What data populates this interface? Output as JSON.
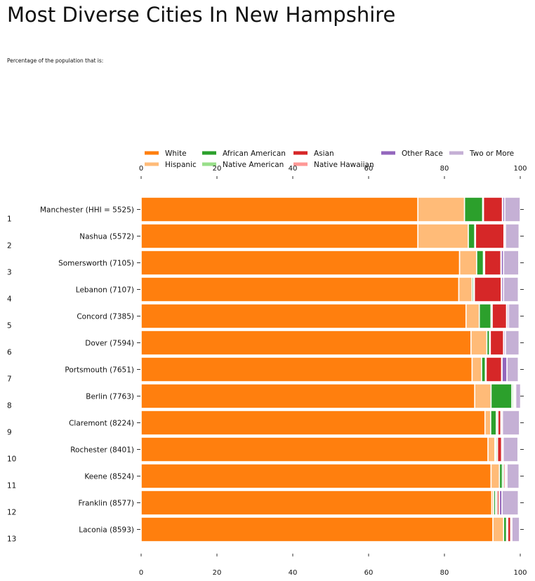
{
  "title": "Most Diverse Cities In New Hampshire",
  "subtitle": "Percentage of the population that is:",
  "colors": {
    "White": "#ff7f0e",
    "Hispanic": "#ffbb78",
    "African American": "#2ca02c",
    "Native American": "#98df8a",
    "Asian": "#d62728",
    "Native Hawaiian": "#ff9896",
    "Other Race": "#9467bd",
    "Two or More": "#c5b0d5"
  },
  "chart_data": {
    "type": "bar",
    "orientation": "horizontal-stacked",
    "title": "Most Diverse Cities In New Hampshire",
    "subtitle": "Percentage of the population that is:",
    "xlim": [
      0,
      100
    ],
    "xticks": [
      0,
      20,
      40,
      60,
      80,
      100
    ],
    "legend_placement": "top",
    "grid": false,
    "rank_labels": [
      "1",
      "2",
      "3",
      "4",
      "5",
      "6",
      "7",
      "8",
      "9",
      "10",
      "11",
      "12",
      "13"
    ],
    "categories": [
      "Manchester (HHI = 5525)",
      "Nashua (5572)",
      "Somersworth (7105)",
      "Lebanon (7107)",
      "Concord (7385)",
      "Dover (7594)",
      "Portsmouth (7651)",
      "Berlin (7763)",
      "Claremont (8224)",
      "Rochester (8401)",
      "Keene (8524)",
      "Franklin (8577)",
      "Laconia (8593)"
    ],
    "series": [
      {
        "name": "White",
        "values": [
          73.0,
          73.0,
          84.0,
          83.8,
          85.7,
          87.0,
          87.3,
          88.0,
          90.7,
          91.5,
          92.3,
          92.5,
          92.8
        ]
      },
      {
        "name": "Hispanic",
        "values": [
          12.3,
          13.3,
          4.5,
          3.5,
          3.5,
          4.2,
          2.5,
          4.3,
          1.5,
          1.8,
          2.2,
          0.5,
          2.8
        ]
      },
      {
        "name": "African American",
        "values": [
          4.8,
          1.7,
          1.8,
          0.4,
          3.1,
          0.7,
          1.0,
          5.5,
          1.5,
          0.3,
          0.8,
          0.5,
          0.8
        ]
      },
      {
        "name": "Native American",
        "values": [
          0.2,
          0.2,
          0.3,
          0.2,
          0.3,
          0.2,
          0.2,
          0.4,
          0.4,
          0.4,
          0.4,
          0.4,
          0.3
        ]
      },
      {
        "name": "Asian",
        "values": [
          5.0,
          7.5,
          4.3,
          7.1,
          3.8,
          3.5,
          4.1,
          0.2,
          0.8,
          1.1,
          0.4,
          0.5,
          0.8
        ]
      },
      {
        "name": "Native Hawaiian",
        "values": [
          0.1,
          0.1,
          0.1,
          0.1,
          0.1,
          0.1,
          0.1,
          0.1,
          0.1,
          0.1,
          0.1,
          0.1,
          0.1
        ]
      },
      {
        "name": "Other Race",
        "values": [
          0.5,
          0.3,
          0.6,
          0.5,
          0.4,
          0.4,
          1.3,
          0.3,
          0.3,
          0.3,
          0.3,
          0.7,
          0.2
        ]
      },
      {
        "name": "Two or More",
        "values": [
          4.1,
          3.6,
          4.0,
          3.9,
          2.8,
          3.6,
          3.0,
          1.3,
          4.5,
          3.9,
          3.2,
          4.3,
          2.0
        ]
      }
    ]
  }
}
